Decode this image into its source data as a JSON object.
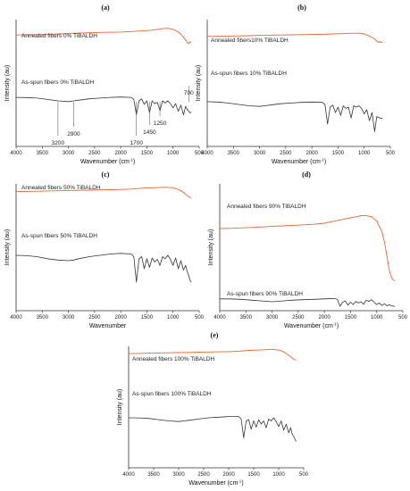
{
  "chart_data": [
    {
      "type": "line",
      "panel": "(a)",
      "xlabel": "Wavenumber (cm",
      "xlabel_sup": "-1",
      "xlabel_end": ")",
      "ylabel": "Intensity (au)",
      "xlim": [
        4000,
        500
      ],
      "xticks": [
        "4000",
        "3500",
        "3000",
        "2500",
        "2000",
        "1500",
        "1000",
        "500"
      ],
      "series": [
        {
          "name": "Annealed fibers 0% TiBALDH",
          "color": "#e8663a",
          "x": [
            4000,
            3800,
            3600,
            3400,
            3200,
            3000,
            2800,
            2600,
            2400,
            2200,
            2000,
            1800,
            1600,
            1400,
            1300,
            1200,
            1100,
            1000,
            900,
            850,
            800,
            760,
            730,
            700,
            680,
            650
          ],
          "y": [
            0.78,
            0.785,
            0.79,
            0.8,
            0.81,
            0.82,
            0.83,
            0.84,
            0.85,
            0.855,
            0.86,
            0.875,
            0.89,
            0.91,
            0.93,
            0.95,
            0.96,
            0.93,
            0.86,
            0.8,
            0.72,
            0.65,
            0.58,
            0.55,
            0.6,
            0.58
          ]
        },
        {
          "name": "As-spun fibers 0% TiBALDH",
          "color": "#333333",
          "x": [
            4000,
            3800,
            3600,
            3400,
            3200,
            3000,
            2900,
            2800,
            2600,
            2400,
            2200,
            2000,
            1800,
            1750,
            1700,
            1650,
            1600,
            1550,
            1500,
            1450,
            1400,
            1350,
            1300,
            1250,
            1200,
            1150,
            1100,
            1050,
            1000,
            950,
            900,
            850,
            800,
            760,
            730,
            700,
            670,
            650
          ],
          "y": [
            0.55,
            0.548,
            0.54,
            0.52,
            0.5,
            0.49,
            0.5,
            0.51,
            0.53,
            0.54,
            0.55,
            0.555,
            0.55,
            0.52,
            0.3,
            0.5,
            0.53,
            0.45,
            0.5,
            0.33,
            0.5,
            0.46,
            0.48,
            0.36,
            0.5,
            0.47,
            0.5,
            0.46,
            0.4,
            0.46,
            0.35,
            0.44,
            0.3,
            0.42,
            0.38,
            0.35,
            0.33,
            0.34
          ]
        }
      ],
      "annotations": [
        {
          "label": "3200",
          "x": 3200
        },
        {
          "label": "2900",
          "x": 2900
        },
        {
          "label": "1700",
          "x": 1700
        },
        {
          "label": "1450",
          "x": 1450
        },
        {
          "label": "1250",
          "x": 1250
        },
        {
          "label": "700",
          "x": 700
        }
      ]
    },
    {
      "type": "line",
      "panel": "(b)",
      "xlabel": "Wavenumber (cm",
      "xlabel_sup": "-1",
      "xlabel_end": ")",
      "ylabel": "Intensity (au)",
      "xlim": [
        4000,
        500
      ],
      "xticks": [
        "4000",
        "3500",
        "3000",
        "2500",
        "2000",
        "1500",
        "1000",
        "500"
      ],
      "series": [
        {
          "name": "Annealed fibers10% TiBALDH",
          "color": "#e8663a",
          "x": [
            4000,
            3800,
            3600,
            3400,
            3200,
            3000,
            2800,
            2600,
            2400,
            2200,
            2000,
            1800,
            1600,
            1400,
            1200,
            1100,
            1000,
            950,
            900,
            850,
            800,
            760,
            720,
            700,
            680,
            650
          ],
          "y": [
            0.83,
            0.835,
            0.84,
            0.845,
            0.85,
            0.86,
            0.865,
            0.87,
            0.875,
            0.88,
            0.885,
            0.89,
            0.9,
            0.91,
            0.92,
            0.92,
            0.9,
            0.87,
            0.84,
            0.8,
            0.76,
            0.7,
            0.66,
            0.69,
            0.66,
            0.67
          ]
        },
        {
          "name": "As-spun fibers 10% TiBALDH",
          "color": "#333333",
          "x": [
            4000,
            3800,
            3600,
            3400,
            3200,
            3000,
            2900,
            2800,
            2600,
            2400,
            2200,
            2000,
            1800,
            1750,
            1700,
            1650,
            1600,
            1550,
            1500,
            1450,
            1400,
            1350,
            1300,
            1250,
            1200,
            1150,
            1100,
            1050,
            1000,
            950,
            900,
            850,
            800,
            760,
            730,
            700,
            670,
            650
          ],
          "y": [
            0.58,
            0.575,
            0.56,
            0.54,
            0.52,
            0.51,
            0.52,
            0.53,
            0.55,
            0.56,
            0.57,
            0.575,
            0.57,
            0.54,
            0.25,
            0.5,
            0.53,
            0.42,
            0.5,
            0.38,
            0.52,
            0.48,
            0.5,
            0.34,
            0.52,
            0.5,
            0.52,
            0.48,
            0.4,
            0.46,
            0.3,
            0.42,
            0.14,
            0.36,
            0.35,
            0.34,
            0.33,
            0.34
          ]
        }
      ]
    },
    {
      "type": "line",
      "panel": "(c)",
      "xlabel": "Wavenumber",
      "ylabel": "Intensity (au)",
      "xlim": [
        4000,
        500
      ],
      "xticks": [
        "4000",
        "3500",
        "3000",
        "2500",
        "2000",
        "1500",
        "1000",
        "500"
      ],
      "series": [
        {
          "name": "Annealed fibers 50% TiBALDH",
          "color": "#e8663a",
          "x": [
            4000,
            3800,
            3600,
            3400,
            3200,
            3000,
            2800,
            2600,
            2400,
            2200,
            2000,
            1800,
            1600,
            1400,
            1200,
            1100,
            1000,
            950,
            900,
            850,
            800,
            760,
            720,
            700,
            680,
            650
          ],
          "y": [
            0.82,
            0.825,
            0.83,
            0.835,
            0.84,
            0.845,
            0.85,
            0.855,
            0.86,
            0.865,
            0.87,
            0.88,
            0.9,
            0.91,
            0.92,
            0.92,
            0.91,
            0.89,
            0.87,
            0.84,
            0.8,
            0.76,
            0.72,
            0.7,
            0.69,
            0.68
          ]
        },
        {
          "name": "As-spun fibers 50% TiBALDH",
          "color": "#333333",
          "x": [
            4000,
            3800,
            3600,
            3400,
            3200,
            3000,
            2900,
            2800,
            2600,
            2400,
            2200,
            2000,
            1800,
            1750,
            1700,
            1650,
            1600,
            1550,
            1500,
            1450,
            1400,
            1350,
            1300,
            1250,
            1200,
            1150,
            1100,
            1050,
            1000,
            950,
            900,
            850,
            800,
            760,
            730,
            700,
            670,
            650
          ],
          "y": [
            0.6,
            0.595,
            0.58,
            0.55,
            0.53,
            0.52,
            0.53,
            0.55,
            0.58,
            0.6,
            0.62,
            0.63,
            0.62,
            0.58,
            0.2,
            0.55,
            0.58,
            0.4,
            0.55,
            0.42,
            0.56,
            0.5,
            0.54,
            0.45,
            0.58,
            0.55,
            0.6,
            0.54,
            0.45,
            0.56,
            0.4,
            0.52,
            0.38,
            0.45,
            0.36,
            0.3,
            0.22,
            0.2
          ]
        }
      ]
    },
    {
      "type": "line",
      "panel": "(d)",
      "xlabel": "Wavenumber (cm",
      "xlabel_sup": "-1",
      "xlabel_end": ")",
      "ylabel": "Intensity (au)",
      "xlim": [
        4000,
        500
      ],
      "xticks": [
        "4000",
        "3500",
        "3000",
        "2500",
        "2000",
        "1500",
        "1000",
        "500"
      ],
      "series": [
        {
          "name": "Annealed fibers 90% TiBALDH",
          "color": "#e8663a",
          "x": [
            4000,
            3800,
            3600,
            3400,
            3200,
            3000,
            2800,
            2600,
            2400,
            2200,
            2000,
            1800,
            1700,
            1600,
            1500,
            1400,
            1300,
            1200,
            1100,
            1000,
            900,
            850,
            800,
            760,
            720,
            700,
            680,
            650
          ],
          "y": [
            0.75,
            0.752,
            0.756,
            0.76,
            0.765,
            0.77,
            0.775,
            0.78,
            0.785,
            0.79,
            0.8,
            0.82,
            0.83,
            0.84,
            0.85,
            0.86,
            0.87,
            0.87,
            0.86,
            0.82,
            0.72,
            0.62,
            0.48,
            0.36,
            0.3,
            0.28,
            0.27,
            0.26
          ]
        },
        {
          "name": "As-spun fibers 90% TiBALDH",
          "color": "#333333",
          "x": [
            4000,
            3800,
            3600,
            3400,
            3200,
            3000,
            2900,
            2800,
            2600,
            2400,
            2200,
            2000,
            1800,
            1750,
            1700,
            1650,
            1600,
            1550,
            1500,
            1450,
            1400,
            1350,
            1300,
            1250,
            1200,
            1150,
            1100,
            1050,
            1000,
            950,
            900,
            850,
            800,
            760,
            730,
            700,
            670,
            650
          ],
          "y": [
            0.2,
            0.2,
            0.19,
            0.17,
            0.15,
            0.13,
            0.14,
            0.15,
            0.17,
            0.18,
            0.19,
            0.2,
            0.21,
            0.18,
            0.02,
            0.12,
            0.15,
            0.05,
            0.12,
            0.06,
            0.14,
            0.1,
            0.13,
            0.07,
            0.17,
            0.14,
            0.18,
            0.12,
            0.06,
            0.1,
            0.04,
            0.08,
            0.03,
            0.06,
            0.04,
            0.03,
            0.02,
            0.02
          ]
        }
      ]
    },
    {
      "type": "line",
      "panel": "(e)",
      "xlabel": "Wavenumber (cm",
      "xlabel_sup": "-1",
      "xlabel_end": ")",
      "ylabel": "Intensity (au)",
      "xlim": [
        4000,
        500
      ],
      "xticks": [
        "4000",
        "3500",
        "3000",
        "2500",
        "2000",
        "1500",
        "1000",
        "500"
      ],
      "series": [
        {
          "name": "Annealed fibers 100% TiBALDH",
          "color": "#e8663a",
          "x": [
            4000,
            3800,
            3600,
            3400,
            3200,
            3000,
            2800,
            2600,
            2400,
            2200,
            2000,
            1800,
            1600,
            1400,
            1200,
            1100,
            1000,
            950,
            900,
            850,
            800,
            760,
            720,
            700,
            680,
            650
          ],
          "y": [
            0.82,
            0.825,
            0.83,
            0.835,
            0.84,
            0.845,
            0.85,
            0.855,
            0.86,
            0.865,
            0.87,
            0.88,
            0.9,
            0.91,
            0.92,
            0.92,
            0.91,
            0.89,
            0.86,
            0.82,
            0.78,
            0.74,
            0.7,
            0.68,
            0.67,
            0.66
          ]
        },
        {
          "name": "As-spun fibers 100% TiBALDH",
          "color": "#333333",
          "x": [
            4000,
            3800,
            3600,
            3400,
            3200,
            3000,
            2900,
            2800,
            2600,
            2400,
            2200,
            2000,
            1800,
            1750,
            1700,
            1650,
            1600,
            1550,
            1500,
            1450,
            1400,
            1350,
            1300,
            1250,
            1200,
            1150,
            1100,
            1050,
            1000,
            950,
            900,
            850,
            800,
            760,
            730,
            700,
            670,
            650
          ],
          "y": [
            0.6,
            0.598,
            0.59,
            0.57,
            0.55,
            0.54,
            0.55,
            0.56,
            0.58,
            0.6,
            0.61,
            0.62,
            0.62,
            0.58,
            0.28,
            0.55,
            0.57,
            0.42,
            0.55,
            0.45,
            0.57,
            0.5,
            0.55,
            0.44,
            0.58,
            0.55,
            0.6,
            0.54,
            0.46,
            0.55,
            0.4,
            0.5,
            0.36,
            0.44,
            0.34,
            0.3,
            0.25,
            0.22
          ]
        }
      ]
    }
  ]
}
